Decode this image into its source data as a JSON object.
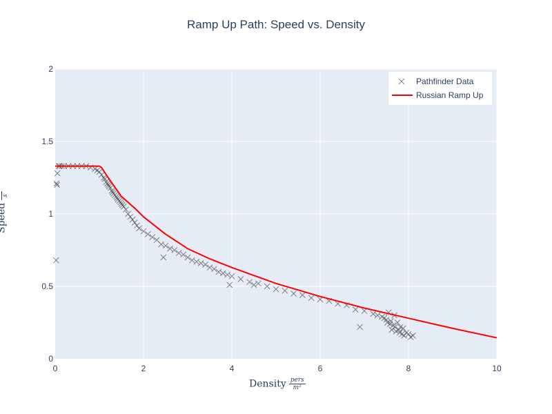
{
  "chart_data": {
    "type": "scatter",
    "title": "Ramp Up Path: Speed vs. Density",
    "xlabel": {
      "main": "Density",
      "unit_num": "pers",
      "unit_den": "m²"
    },
    "ylabel": {
      "main": "Speed",
      "unit_num": "m",
      "unit_den": "s"
    },
    "xlim": [
      0,
      10
    ],
    "ylim": [
      0,
      2
    ],
    "x_ticks": [
      0,
      2,
      4,
      6,
      8,
      10
    ],
    "y_ticks": [
      0,
      0.5,
      1,
      1.5,
      2
    ],
    "x_tick_labels": [
      "0",
      "2",
      "4",
      "6",
      "8",
      "10"
    ],
    "y_tick_labels": [
      "0",
      "0.5",
      "1",
      "1.5",
      "2"
    ],
    "grid": true,
    "legend_position": "top-right",
    "colors": {
      "plot_bg": "#e5ecf6",
      "grid": "#ffffff",
      "scatter": "#555555",
      "line": "#ff0000",
      "text": "#2a3f5f"
    },
    "series": [
      {
        "name": "Pathfinder Data",
        "mode": "markers",
        "marker": "x",
        "x": [
          0.03,
          0.05,
          0.08,
          0.1,
          0.15,
          0.2,
          0.3,
          0.4,
          0.5,
          0.6,
          0.7,
          0.8,
          0.9,
          0.95,
          1.0,
          1.05,
          1.1,
          1.12,
          1.15,
          1.18,
          1.2,
          1.22,
          1.25,
          1.28,
          1.3,
          1.32,
          1.35,
          1.38,
          1.4,
          1.42,
          1.45,
          1.48,
          1.5,
          1.52,
          1.55,
          1.6,
          1.65,
          1.7,
          1.75,
          1.8,
          1.85,
          1.9,
          2.0,
          2.1,
          2.2,
          2.3,
          2.4,
          2.45,
          2.5,
          2.6,
          2.7,
          2.8,
          2.9,
          3.0,
          3.1,
          3.2,
          3.3,
          3.4,
          3.5,
          3.6,
          3.7,
          3.8,
          3.9,
          3.95,
          4.0,
          4.2,
          4.4,
          4.5,
          4.6,
          4.8,
          5.0,
          5.2,
          5.4,
          5.6,
          5.8,
          6.0,
          6.2,
          6.4,
          6.6,
          6.8,
          6.9,
          7.0,
          7.2,
          7.3,
          7.4,
          7.45,
          7.5,
          7.52,
          7.55,
          7.58,
          7.6,
          7.62,
          7.65,
          7.68,
          7.7,
          7.72,
          7.75,
          7.78,
          7.8,
          7.82,
          7.85,
          7.88,
          7.9,
          7.95,
          8.0,
          8.05,
          8.1,
          0.02,
          0.04
        ],
        "y": [
          1.21,
          1.28,
          1.33,
          1.33,
          1.33,
          1.33,
          1.33,
          1.33,
          1.33,
          1.33,
          1.33,
          1.32,
          1.31,
          1.3,
          1.29,
          1.27,
          1.25,
          1.24,
          1.22,
          1.21,
          1.2,
          1.19,
          1.18,
          1.16,
          1.15,
          1.14,
          1.13,
          1.12,
          1.11,
          1.1,
          1.09,
          1.08,
          1.07,
          1.06,
          1.05,
          1.03,
          1.0,
          0.98,
          0.96,
          0.94,
          0.92,
          0.9,
          0.88,
          0.86,
          0.84,
          0.82,
          0.79,
          0.7,
          0.78,
          0.76,
          0.75,
          0.73,
          0.72,
          0.7,
          0.68,
          0.67,
          0.66,
          0.65,
          0.63,
          0.62,
          0.6,
          0.59,
          0.58,
          0.51,
          0.57,
          0.55,
          0.53,
          0.51,
          0.52,
          0.5,
          0.48,
          0.47,
          0.45,
          0.44,
          0.42,
          0.41,
          0.4,
          0.38,
          0.37,
          0.34,
          0.22,
          0.33,
          0.31,
          0.3,
          0.29,
          0.28,
          0.27,
          0.25,
          0.32,
          0.24,
          0.26,
          0.2,
          0.23,
          0.3,
          0.22,
          0.19,
          0.25,
          0.2,
          0.18,
          0.22,
          0.17,
          0.21,
          0.16,
          0.18,
          0.17,
          0.15,
          0.16,
          0.68,
          1.2
        ]
      },
      {
        "name": "Russian Ramp Up",
        "mode": "line",
        "x": [
          0,
          0.5,
          1.0,
          1.05,
          1.2,
          1.5,
          1.8,
          2.0,
          2.5,
          3.0,
          3.5,
          4.0,
          5.0,
          6.0,
          7.0,
          8.0,
          9.0,
          10.0
        ],
        "y": [
          1.33,
          1.33,
          1.33,
          1.32,
          1.25,
          1.12,
          1.04,
          0.98,
          0.86,
          0.76,
          0.69,
          0.63,
          0.52,
          0.43,
          0.35,
          0.28,
          0.21,
          0.145
        ]
      }
    ]
  }
}
